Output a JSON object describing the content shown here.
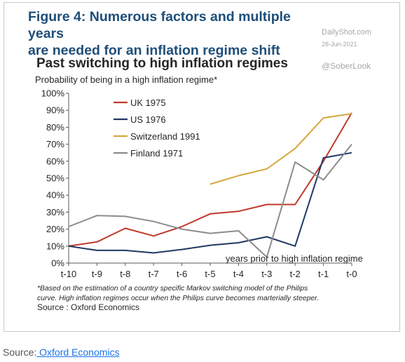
{
  "figure": {
    "title_line1": "Figure 4: Numerous factors and multiple years",
    "title_line2": "are needed for an inflation regime shift",
    "watermark_site": "DailyShot.com",
    "watermark_date": "28-Jun-2021",
    "watermark_handle": "@SoberLook",
    "footnote_line1": "*Based on the estimation of a country specific Markov switching model of the Philips",
    "footnote_line2": "curve. High inflation regimes occur when the Philips curve becomes marterially steeper.",
    "source_line": "Source : Oxford Economics"
  },
  "page_source": {
    "label": "Source:",
    "link_text": " Oxford Economics"
  },
  "colors": {
    "uk": "#c0392b",
    "us": "#1f3864",
    "switzerland": "#d4a83a",
    "finland": "#8c8c8c"
  },
  "chart_data": {
    "type": "line",
    "title": "Past switching to high inflation regimes",
    "ylabel": "Probability of being in a high inflation regime*",
    "xlabel": "years prior to high inflation regime",
    "categories": [
      "t-10",
      "t-9",
      "t-8",
      "t-7",
      "t-6",
      "t-5",
      "t-4",
      "t-3",
      "t-2",
      "t-1",
      "t-0"
    ],
    "ylim": [
      0,
      100
    ],
    "yticks": [
      0,
      10,
      20,
      30,
      40,
      50,
      60,
      70,
      80,
      90,
      100
    ],
    "ytick_labels": [
      "0%",
      "10%",
      "20%",
      "30%",
      "40%",
      "50%",
      "60%",
      "70%",
      "80%",
      "90%",
      "100%"
    ],
    "grid": false,
    "legend_position": "top-left",
    "series": [
      {
        "name": "UK 1975",
        "color_key": "uk",
        "values": [
          10,
          12.5,
          20.5,
          16,
          21.5,
          29,
          30.5,
          34.5,
          34.5,
          60,
          88.5
        ]
      },
      {
        "name": "US 1976",
        "color_key": "us",
        "values": [
          10,
          7.5,
          7.5,
          6,
          8,
          10.5,
          12,
          15.5,
          10,
          62,
          65
        ]
      },
      {
        "name": "Switzerland 1991",
        "color_key": "switzerland",
        "values": [
          null,
          null,
          null,
          null,
          null,
          46.5,
          51.5,
          55.5,
          67.5,
          85.5,
          88
        ]
      },
      {
        "name": "Finland 1971",
        "color_key": "finland",
        "values": [
          21.5,
          28,
          27.5,
          24.5,
          20,
          17.5,
          19,
          3.5,
          59.5,
          49,
          70
        ]
      }
    ]
  }
}
